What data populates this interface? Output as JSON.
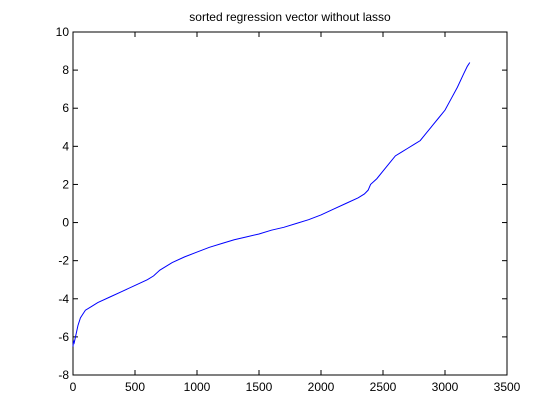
{
  "chart_data": {
    "type": "line",
    "title": "sorted regression vector without lasso",
    "xlabel": "",
    "ylabel": "",
    "xlim": [
      0,
      3500
    ],
    "ylim": [
      -8,
      10
    ],
    "xticks": [
      0,
      500,
      1000,
      1500,
      2000,
      2500,
      3000,
      3500
    ],
    "yticks": [
      -8,
      -6,
      -4,
      -2,
      0,
      2,
      4,
      6,
      8,
      10
    ],
    "grid": false,
    "colors": {
      "line": "#0000ff",
      "axes": "#000000",
      "background": "#ffffff"
    },
    "series": [
      {
        "x": [
          0,
          5,
          10,
          20,
          30,
          40,
          60,
          80,
          100,
          150,
          200,
          300,
          400,
          500,
          600,
          650,
          700,
          800,
          900,
          1000,
          1100,
          1200,
          1300,
          1400,
          1500,
          1600,
          1700,
          1800,
          1900,
          2000,
          2100,
          2200,
          2300,
          2350,
          2380,
          2400,
          2450,
          2500,
          2550,
          2600,
          2650,
          2700,
          2750,
          2800,
          2850,
          2900,
          2950,
          3000,
          3050,
          3100,
          3150,
          3180,
          3200
        ],
        "y": [
          -6.5,
          -6.2,
          -6.3,
          -6.0,
          -5.7,
          -5.4,
          -5.0,
          -4.8,
          -4.6,
          -4.4,
          -4.2,
          -3.9,
          -3.6,
          -3.3,
          -3.0,
          -2.8,
          -2.5,
          -2.1,
          -1.8,
          -1.55,
          -1.3,
          -1.1,
          -0.9,
          -0.75,
          -0.6,
          -0.4,
          -0.25,
          -0.05,
          0.15,
          0.4,
          0.7,
          1.0,
          1.3,
          1.5,
          1.7,
          2.0,
          2.3,
          2.7,
          3.1,
          3.5,
          3.7,
          3.9,
          4.1,
          4.3,
          4.7,
          5.1,
          5.5,
          5.9,
          6.5,
          7.1,
          7.8,
          8.2,
          8.4
        ]
      }
    ]
  }
}
